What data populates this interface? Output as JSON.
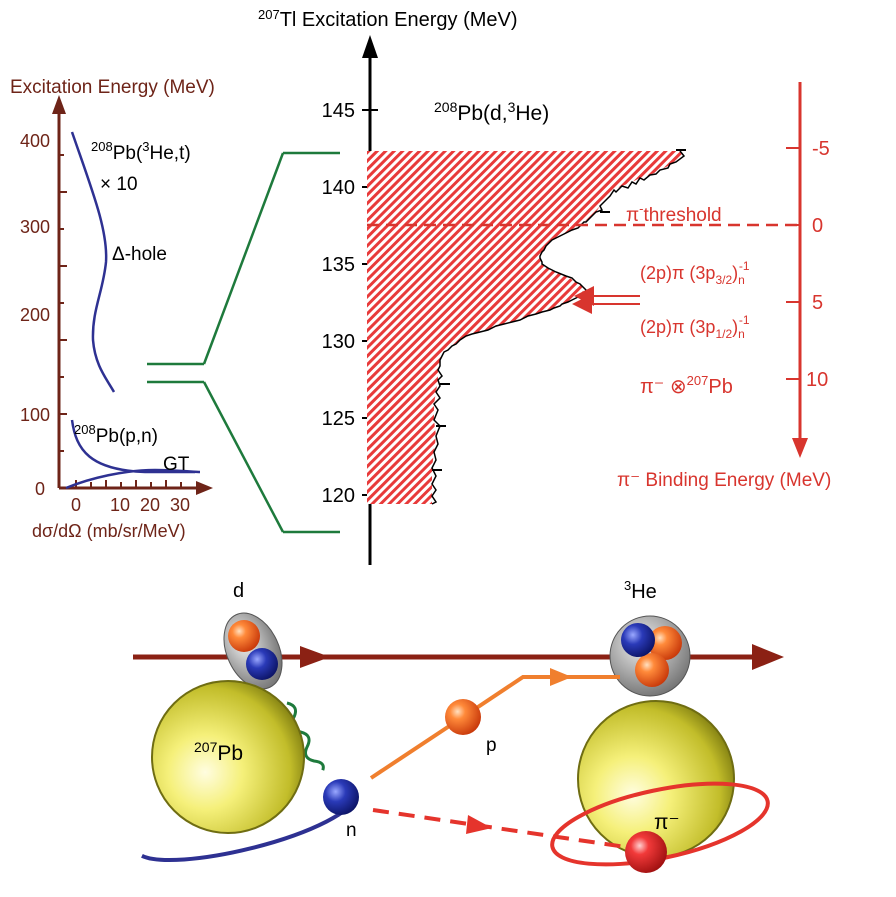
{
  "left_panel": {
    "y_title": "Excitation Energy (MeV)",
    "y_ticks": [
      "0",
      "100",
      "200",
      "300",
      "400"
    ],
    "x_ticks": [
      "0",
      "10",
      "20",
      "30"
    ],
    "x_title": "dσ/dΩ (mb/sr/MeV)",
    "curve1_sup": "208",
    "curve1_label": "Pb(",
    "curve1_sup2": "3",
    "curve1_label2": "He,t)",
    "curve1_scale": "× 10",
    "delta_label": "Δ-hole",
    "curve2_sup": "208",
    "curve2_label": "Pb(p,n)",
    "gt_label": "GT",
    "colors": {
      "axis": "#6e2418",
      "curve": "#2e3192",
      "connector": "#1e7a3c"
    }
  },
  "main_panel": {
    "axis_sup": "207",
    "axis_title": "Tl  Excitation Energy (MeV)",
    "reaction_sup": "208",
    "reaction_label": "Pb(d,",
    "reaction_sup2": "3",
    "reaction_label2": "He)",
    "y_ticks": [
      "145",
      "140",
      "135",
      "130",
      "125",
      "120"
    ],
    "right_ticks": [
      "-5",
      "0",
      "5",
      "10"
    ],
    "threshold_label": "threshold",
    "state1": "(2p)π (3p3/2)n-1",
    "state2": "(2p)π (3p1/2)n-1",
    "pi_product": "π⁻ ⊗",
    "pi_product_sup": "207",
    "pi_product_el": "Pb",
    "binding_title": "π⁻  Binding Energy (MeV)",
    "colors": {
      "fill": "#e83a3a",
      "binding": "#d8352e"
    }
  },
  "reaction_diagram": {
    "deuteron": "d",
    "he3_sup": "3",
    "he3": "He",
    "proton": "p",
    "neutron": "n",
    "target_sup": "207",
    "target": "Pb",
    "pion": "π⁻",
    "colors": {
      "beam": "#8b2114",
      "proton_path": "#f07f2e",
      "pion_path": "#e5342c",
      "nucleus": "#c9c62a"
    }
  }
}
